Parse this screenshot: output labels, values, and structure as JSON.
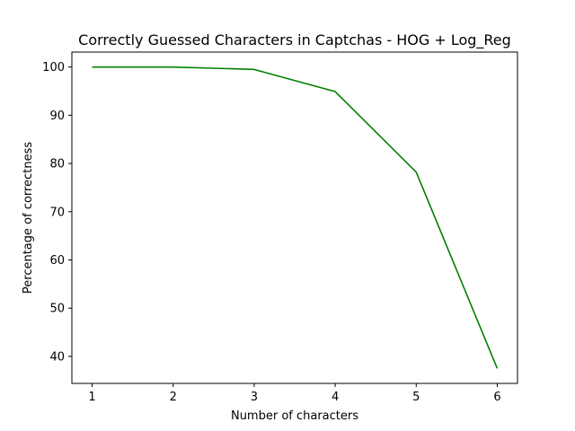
{
  "chart_data": {
    "type": "line",
    "title": "Correctly Guessed Characters in Captchas - HOG + Log_Reg",
    "xlabel": "Number of characters",
    "ylabel": "Percentage of correctness",
    "x": [
      1,
      2,
      3,
      4,
      5,
      6
    ],
    "series": [
      {
        "values": [
          100.0,
          100.0,
          99.5,
          94.9,
          78.2,
          37.5
        ],
        "color": "#008000"
      }
    ],
    "xlim": [
      0.75,
      6.25
    ],
    "ylim": [
      34.4,
      103.1
    ],
    "xticks": [
      "1",
      "2",
      "3",
      "4",
      "5",
      "6"
    ],
    "yticks": [
      "40",
      "50",
      "60",
      "70",
      "80",
      "90",
      "100"
    ],
    "grid": false,
    "legend": "none"
  }
}
